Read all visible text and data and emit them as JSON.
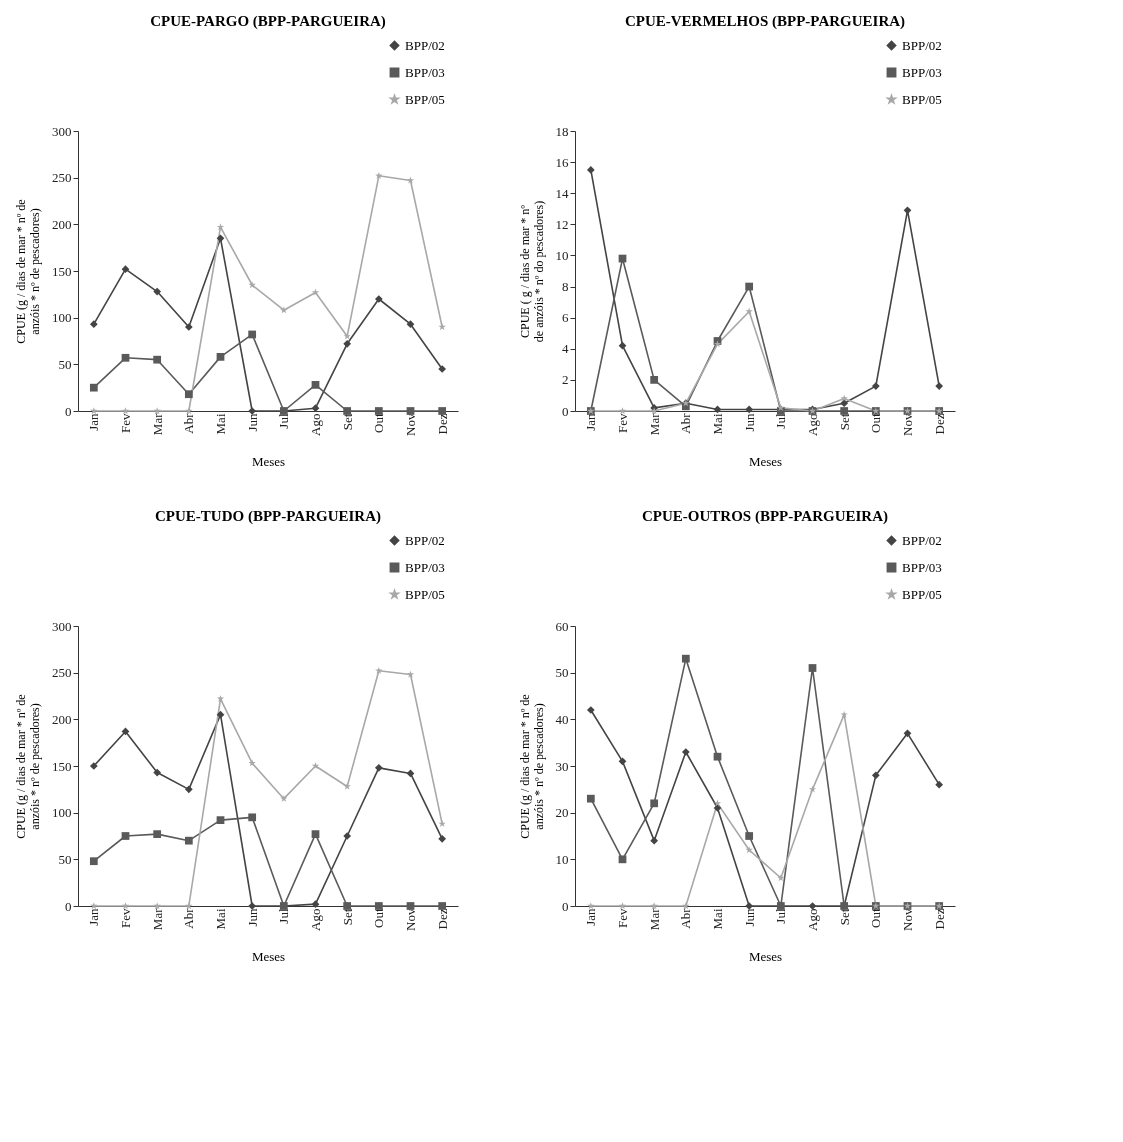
{
  "chart_data": [
    {
      "type": "line",
      "title": "CPUE-PARGO (BPP-PARGUEIRA)",
      "xlabel": "Meses",
      "ylabel": "CPUE (g / dias de mar * nº de anzóis * nº de pescadores)",
      "categories": [
        "Jan",
        "Fev",
        "Mar",
        "Abr",
        "Mai",
        "Jun",
        "Jul",
        "Ago",
        "Set",
        "Out",
        "Nov",
        "Dez"
      ],
      "ylim": [
        0,
        300
      ],
      "yticks": [
        0,
        50,
        100,
        150,
        200,
        250,
        300
      ],
      "grid": false,
      "legend": "top right",
      "series": [
        {
          "name": "BPP/02",
          "color": "#444444",
          "marker": "diamond",
          "values": [
            93,
            152,
            128,
            90,
            185,
            0,
            0,
            3,
            72,
            120,
            93,
            45
          ]
        },
        {
          "name": "BPP/03",
          "color": "#5a5a5a",
          "marker": "square",
          "values": [
            25,
            57,
            55,
            18,
            58,
            82,
            0,
            28,
            0,
            0,
            0,
            0
          ]
        },
        {
          "name": "BPP/05",
          "color": "#a8a8a8",
          "marker": "star",
          "values": [
            0,
            0,
            0,
            0,
            197,
            135,
            108,
            127,
            80,
            252,
            247,
            90
          ]
        }
      ]
    },
    {
      "type": "line",
      "title": "CPUE-VERMELHOS (BPP-PARGUEIRA)",
      "xlabel": "Meses",
      "ylabel": "CPUE ( g / dias de mar * nº de anzóis * nº do pescadores)",
      "categories": [
        "Jan",
        "Fev",
        "Mar",
        "Abr",
        "Mai",
        "Jun",
        "Jul",
        "Ago",
        "Set",
        "Out",
        "Nov",
        "Dez"
      ],
      "ylim": [
        0,
        18
      ],
      "yticks": [
        0,
        2,
        4,
        6,
        8,
        10,
        12,
        14,
        16,
        18
      ],
      "grid": false,
      "legend": "top right",
      "series": [
        {
          "name": "BPP/02",
          "color": "#444444",
          "marker": "diamond",
          "values": [
            15.5,
            4.2,
            0.2,
            0.5,
            0.1,
            0.1,
            0.1,
            0.1,
            0.5,
            1.6,
            12.9,
            1.6
          ]
        },
        {
          "name": "BPP/03",
          "color": "#5a5a5a",
          "marker": "square",
          "values": [
            0,
            9.8,
            2.0,
            0.3,
            4.5,
            8.0,
            0,
            0,
            0,
            0,
            0,
            0
          ]
        },
        {
          "name": "BPP/05",
          "color": "#a8a8a8",
          "marker": "star",
          "values": [
            0,
            0,
            0,
            0.5,
            4.3,
            6.4,
            0.2,
            0,
            0.8,
            0,
            0,
            0
          ]
        }
      ]
    },
    {
      "type": "line",
      "title": "CPUE-TUDO (BPP-PARGUEIRA)",
      "xlabel": "Meses",
      "ylabel": "CPUE (g / dias de mar * nº de anzóis * nº de pescadores)",
      "categories": [
        "Jan",
        "Fev",
        "Mar",
        "Abr",
        "Mai",
        "Jun",
        "Jul",
        "Ago",
        "Set",
        "Out",
        "Nov",
        "Dez"
      ],
      "ylim": [
        0,
        300
      ],
      "yticks": [
        0,
        50,
        100,
        150,
        200,
        250,
        300
      ],
      "grid": false,
      "legend": "top right",
      "series": [
        {
          "name": "BPP/02",
          "color": "#444444",
          "marker": "diamond",
          "values": [
            150,
            187,
            143,
            125,
            205,
            0,
            0,
            2,
            75,
            148,
            142,
            72
          ]
        },
        {
          "name": "BPP/03",
          "color": "#5a5a5a",
          "marker": "square",
          "values": [
            48,
            75,
            77,
            70,
            92,
            95,
            0,
            77,
            0,
            0,
            0,
            0
          ]
        },
        {
          "name": "BPP/05",
          "color": "#a8a8a8",
          "marker": "star",
          "values": [
            0,
            0,
            0,
            0,
            222,
            153,
            115,
            150,
            128,
            252,
            248,
            88
          ]
        }
      ]
    },
    {
      "type": "line",
      "title": "CPUE-OUTROS (BPP-PARGUEIRA)",
      "xlabel": "Meses",
      "ylabel": "CPUE (g / dias de mar * nº de anzóis * nº de pescadores)",
      "categories": [
        "Jan",
        "Fev",
        "Mar",
        "Abr",
        "Mai",
        "Jun",
        "Jul",
        "Ago",
        "Set",
        "Out",
        "Nov",
        "Dez"
      ],
      "ylim": [
        0,
        60
      ],
      "yticks": [
        0,
        10,
        20,
        30,
        40,
        50,
        60
      ],
      "grid": false,
      "legend": "top right",
      "series": [
        {
          "name": "BPP/02",
          "color": "#444444",
          "marker": "diamond",
          "values": [
            42,
            31,
            14,
            33,
            21,
            0,
            0,
            0,
            0,
            28,
            37,
            26
          ]
        },
        {
          "name": "BPP/03",
          "color": "#5a5a5a",
          "marker": "square",
          "values": [
            23,
            10,
            22,
            53,
            32,
            15,
            0,
            51,
            0,
            0,
            0,
            0
          ]
        },
        {
          "name": "BPP/05",
          "color": "#a8a8a8",
          "marker": "star",
          "values": [
            0,
            0,
            0,
            0,
            22,
            12,
            6,
            25,
            41,
            0,
            0,
            0
          ]
        }
      ]
    }
  ]
}
